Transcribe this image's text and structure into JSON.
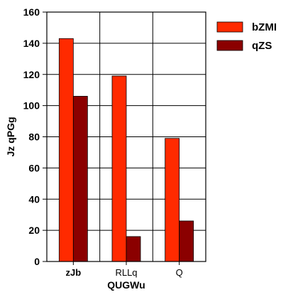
{
  "chart_data": {
    "type": "bar",
    "categories": [
      "zJb",
      "RLLq",
      "Q"
    ],
    "series": [
      {
        "name": "bZMI",
        "values": [
          143,
          119,
          79
        ],
        "color": "#ff2a00"
      },
      {
        "name": "qZS",
        "values": [
          106,
          16,
          26
        ],
        "color": "#8b0000"
      }
    ],
    "xlabel": "QUGWu",
    "ylabel": "Jz qPGg",
    "ylim": [
      0,
      160
    ],
    "yticks": [
      0,
      20,
      40,
      60,
      80,
      100,
      120,
      140,
      160
    ],
    "grid": true,
    "legend_position": "top-right",
    "bold_categories": [
      "zJb"
    ]
  }
}
